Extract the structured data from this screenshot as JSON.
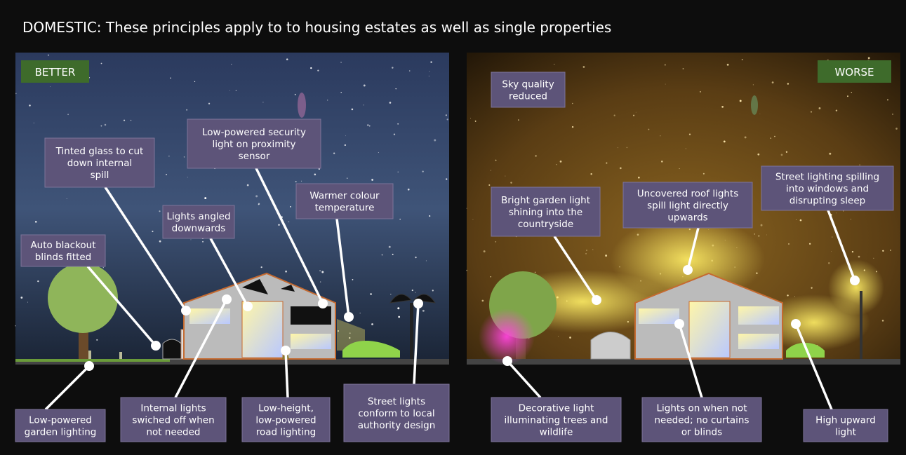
{
  "header": {
    "title": "DOMESTIC: These principles apply to  to housing estates as well as single properties"
  },
  "better": {
    "tag": "BETTER",
    "labels": [
      {
        "lines": [
          "Tinted glass to cut",
          "down internal",
          "spill"
        ]
      },
      {
        "lines": [
          "Low-powered security",
          "light on proximity",
          "sensor"
        ]
      },
      {
        "lines": [
          "Warmer colour",
          "temperature"
        ]
      },
      {
        "lines": [
          "Lights angled",
          "downwards"
        ]
      },
      {
        "lines": [
          "Auto blackout",
          "blinds fitted"
        ]
      },
      {
        "lines": [
          "Low-powered",
          "garden lighting"
        ]
      },
      {
        "lines": [
          "Internal lights",
          "swiched off when",
          "not needed"
        ]
      },
      {
        "lines": [
          "Low-height,",
          "low-powered",
          "road lighting"
        ]
      },
      {
        "lines": [
          "Street lights",
          "conform to local",
          "authority design"
        ]
      }
    ]
  },
  "worse": {
    "tag": "WORSE",
    "labels": [
      {
        "lines": [
          "Sky quality",
          "reduced"
        ]
      },
      {
        "lines": [
          "Bright garden light",
          "shining into the",
          "countryside"
        ]
      },
      {
        "lines": [
          "Uncovered roof lights",
          "spill light directly",
          "upwards"
        ]
      },
      {
        "lines": [
          "Street lighting spilling",
          "into windows and",
          "disrupting sleep"
        ]
      },
      {
        "lines": [
          "Decorative light",
          "illuminating trees and",
          "wildlife"
        ]
      },
      {
        "lines": [
          "Lights on when not",
          "needed; no curtains",
          "or blinds"
        ]
      },
      {
        "lines": [
          "High upward",
          "light"
        ]
      }
    ]
  }
}
